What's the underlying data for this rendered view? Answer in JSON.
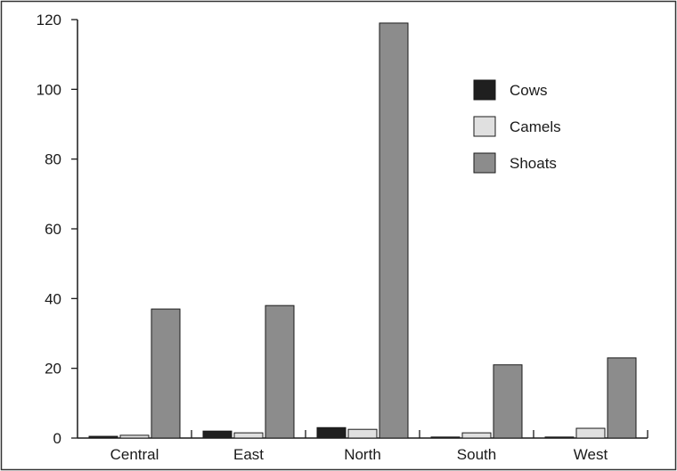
{
  "chart_data": {
    "type": "bar",
    "categories": [
      "Central",
      "East",
      "North",
      "South",
      "West"
    ],
    "series": [
      {
        "name": "Cows",
        "values": [
          0.5,
          2.0,
          3.0,
          0.3,
          0.3
        ],
        "color": "#1f1f1f"
      },
      {
        "name": "Camels",
        "values": [
          0.8,
          1.5,
          2.5,
          1.5,
          2.8
        ],
        "color": "#e0e0e0"
      },
      {
        "name": "Shoats",
        "values": [
          37,
          38,
          119,
          21,
          23
        ],
        "color": "#8c8c8c"
      }
    ],
    "ylim": [
      0,
      120
    ],
    "yticks": [
      0,
      20,
      40,
      60,
      80,
      100,
      120
    ],
    "title": "",
    "xlabel": "",
    "ylabel": "",
    "grid": false,
    "legend_position": "top-right"
  }
}
